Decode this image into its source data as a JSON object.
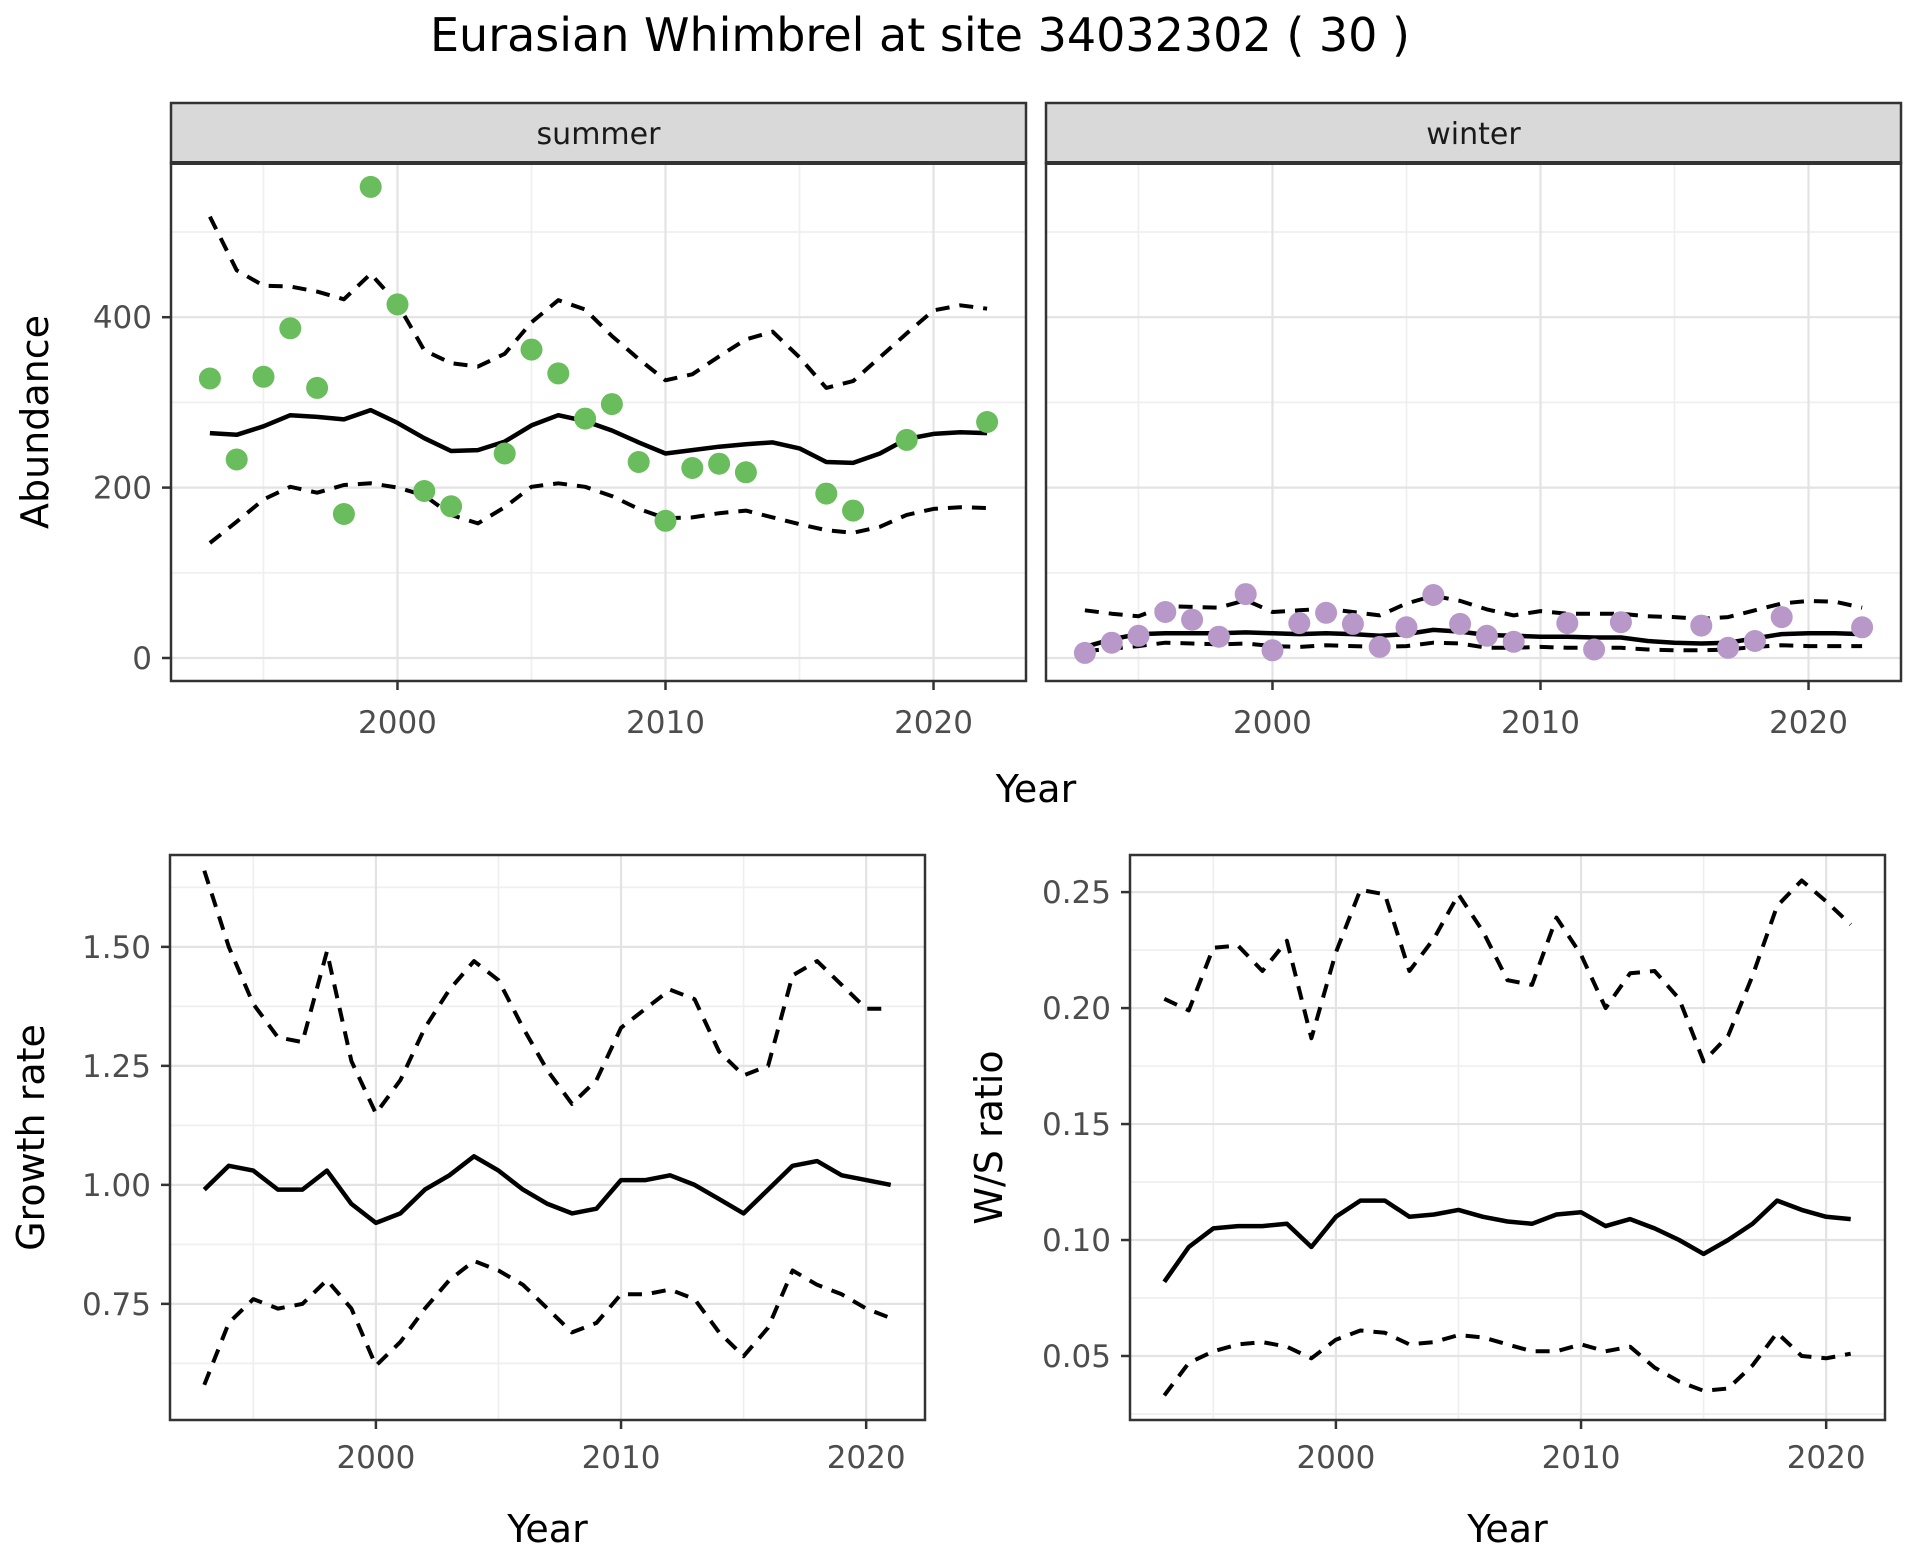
{
  "title": "Eurasian Whimbrel at site 34032302 ( 30 )",
  "top_xlabel": "Year",
  "colors": {
    "summer_point": "#6ABD5C",
    "winter_point": "#B897C9",
    "line": "#000000",
    "strip_fill": "#D9D9D9",
    "strip_text": "#1A1A1A",
    "panel_border": "#333333",
    "grid_major": "#E3E3E3",
    "grid_minor": "#EFEFEF",
    "tick_text": "#4D4D4D",
    "background": "#FFFFFF"
  },
  "chart_data": [
    {
      "id": "abundance-summer",
      "type": "scatter",
      "facet_label": "summer",
      "ylabel": "Abundance",
      "xlabel": "",
      "xlim": [
        1991.55,
        2023.45
      ],
      "ylim": [
        -27,
        581
      ],
      "xticks": [
        2000,
        2010,
        2020
      ],
      "xtick_labels": [
        "2000",
        "2010",
        "2020"
      ],
      "xminor": [
        1995,
        2005,
        2015
      ],
      "yticks": [
        0,
        200,
        400
      ],
      "ytick_labels": [
        "0",
        "200",
        "400"
      ],
      "yminor": [
        100,
        300,
        500
      ],
      "point_color": "#6ABD5C",
      "points": {
        "x": [
          1993,
          1994,
          1995,
          1996,
          1997,
          1998,
          1999,
          2000,
          2001,
          2002,
          2004,
          2005,
          2006,
          2007,
          2008,
          2009,
          2010,
          2011,
          2012,
          2013,
          2016,
          2017,
          2019,
          2022
        ],
        "y": [
          328,
          233,
          330,
          387,
          317,
          169,
          553,
          415,
          196,
          178,
          240,
          362,
          334,
          281,
          298,
          230,
          161,
          223,
          228,
          218,
          193,
          173,
          256,
          277
        ]
      },
      "series": [
        {
          "name": "fit",
          "style": "solid",
          "x": [
            1993,
            1994,
            1995,
            1996,
            1997,
            1998,
            1999,
            2000,
            2001,
            2002,
            2003,
            2004,
            2005,
            2006,
            2007,
            2008,
            2009,
            2010,
            2011,
            2012,
            2013,
            2014,
            2015,
            2016,
            2017,
            2018,
            2019,
            2020,
            2021,
            2022
          ],
          "y": [
            264,
            262,
            272,
            285,
            283,
            280,
            291,
            276,
            258,
            243,
            244,
            254,
            273,
            285,
            278,
            267,
            253,
            240,
            244,
            248,
            251,
            253,
            246,
            230,
            229,
            240,
            257,
            263,
            265,
            264
          ]
        },
        {
          "name": "upper_ci",
          "style": "dashed",
          "x": [
            1993,
            1994,
            1995,
            1996,
            1997,
            1998,
            1999,
            2000,
            2001,
            2002,
            2003,
            2004,
            2005,
            2006,
            2007,
            2008,
            2009,
            2010,
            2011,
            2012,
            2013,
            2014,
            2015,
            2016,
            2017,
            2018,
            2019,
            2020,
            2021,
            2022
          ],
          "y": [
            518,
            455,
            437,
            436,
            430,
            421,
            451,
            416,
            361,
            346,
            342,
            357,
            394,
            420,
            409,
            378,
            351,
            326,
            333,
            354,
            374,
            383,
            353,
            317,
            325,
            353,
            381,
            408,
            414,
            410
          ]
        },
        {
          "name": "lower_ci",
          "style": "dashed",
          "x": [
            1993,
            1994,
            1995,
            1996,
            1997,
            1998,
            1999,
            2000,
            2001,
            2002,
            2003,
            2004,
            2005,
            2006,
            2007,
            2008,
            2009,
            2010,
            2011,
            2012,
            2013,
            2014,
            2015,
            2016,
            2017,
            2018,
            2019,
            2020,
            2021,
            2022
          ],
          "y": [
            135,
            160,
            186,
            201,
            194,
            203,
            205,
            200,
            191,
            168,
            158,
            177,
            201,
            205,
            201,
            190,
            175,
            164,
            165,
            170,
            173,
            165,
            157,
            150,
            147,
            154,
            168,
            175,
            177,
            176
          ]
        }
      ]
    },
    {
      "id": "abundance-winter",
      "type": "scatter",
      "facet_label": "winter",
      "ylabel": "",
      "xlabel": "",
      "xlim": [
        1991.55,
        2023.45
      ],
      "ylim": [
        -27,
        581
      ],
      "xticks": [
        2000,
        2010,
        2020
      ],
      "xtick_labels": [
        "2000",
        "2010",
        "2020"
      ],
      "xminor": [
        1995,
        2005,
        2015
      ],
      "yticks": [
        0,
        200,
        400
      ],
      "ytick_labels": [
        "0",
        "200",
        "400"
      ],
      "yminor": [
        100,
        300,
        500
      ],
      "point_color": "#B897C9",
      "points": {
        "x": [
          1993,
          1994,
          1995,
          1996,
          1997,
          1998,
          1999,
          2000,
          2001,
          2002,
          2003,
          2004,
          2005,
          2006,
          2007,
          2008,
          2009,
          2011,
          2012,
          2013,
          2016,
          2017,
          2018,
          2019,
          2022
        ],
        "y": [
          6,
          18,
          26,
          54,
          45,
          25,
          75,
          9,
          41,
          53,
          40,
          13,
          36,
          74,
          40,
          26,
          19,
          41,
          10,
          42,
          38,
          12,
          20,
          48,
          36
        ]
      },
      "series": [
        {
          "name": "fit",
          "style": "solid",
          "x": [
            1993,
            1994,
            1995,
            1996,
            1997,
            1998,
            1999,
            2000,
            2001,
            2002,
            2003,
            2004,
            2005,
            2006,
            2007,
            2008,
            2009,
            2010,
            2011,
            2012,
            2013,
            2014,
            2015,
            2016,
            2017,
            2018,
            2019,
            2020,
            2021,
            2022
          ],
          "y": [
            13,
            22,
            28,
            29,
            29,
            29,
            30,
            29,
            28,
            29,
            28,
            26,
            28,
            33,
            31,
            27,
            26,
            25,
            25,
            24,
            24,
            20,
            18,
            17,
            18,
            23,
            28,
            29,
            29,
            28
          ]
        },
        {
          "name": "upper_ci",
          "style": "dashed",
          "x": [
            1993,
            1994,
            1995,
            1996,
            1997,
            1998,
            1999,
            2000,
            2001,
            2002,
            2003,
            2004,
            2005,
            2006,
            2007,
            2008,
            2009,
            2010,
            2011,
            2012,
            2013,
            2014,
            2015,
            2016,
            2017,
            2018,
            2019,
            2020,
            2021,
            2022
          ],
          "y": [
            56,
            52,
            49,
            61,
            60,
            59,
            68,
            54,
            56,
            58,
            54,
            50,
            64,
            73,
            67,
            57,
            50,
            55,
            52,
            52,
            52,
            49,
            48,
            46,
            48,
            56,
            64,
            67,
            66,
            59
          ]
        },
        {
          "name": "lower_ci",
          "style": "dashed",
          "x": [
            1993,
            1994,
            1995,
            1996,
            1997,
            1998,
            1999,
            2000,
            2001,
            2002,
            2003,
            2004,
            2005,
            2006,
            2007,
            2008,
            2009,
            2010,
            2011,
            2012,
            2013,
            2014,
            2015,
            2016,
            2017,
            2018,
            2019,
            2020,
            2021,
            2022
          ],
          "y": [
            8,
            11,
            14,
            18,
            17,
            16,
            17,
            14,
            13,
            15,
            14,
            13,
            14,
            18,
            17,
            12,
            12,
            13,
            12,
            12,
            12,
            10,
            9,
            9,
            10,
            13,
            15,
            14,
            14,
            14
          ]
        }
      ]
    },
    {
      "id": "growth-rate",
      "type": "line",
      "facet_label": "",
      "ylabel": "Growth rate",
      "xlabel": "Year",
      "xlim": [
        1991.6,
        2022.4
      ],
      "ylim": [
        0.506,
        1.693
      ],
      "xticks": [
        2000,
        2010,
        2020
      ],
      "xtick_labels": [
        "2000",
        "2010",
        "2020"
      ],
      "xminor": [
        1995,
        2005,
        2015
      ],
      "yticks": [
        0.75,
        1.0,
        1.25,
        1.5
      ],
      "ytick_labels": [
        "0.75",
        "1.00",
        "1.25",
        "1.50"
      ],
      "yminor": [
        0.625,
        0.875,
        1.125,
        1.375,
        1.625
      ],
      "point_color": "",
      "points": {
        "x": [],
        "y": []
      },
      "series": [
        {
          "name": "fit",
          "style": "solid",
          "x": [
            1993,
            1994,
            1995,
            1996,
            1997,
            1998,
            1999,
            2000,
            2001,
            2002,
            2003,
            2004,
            2005,
            2006,
            2007,
            2008,
            2009,
            2010,
            2011,
            2012,
            2013,
            2014,
            2015,
            2016,
            2017,
            2018,
            2019,
            2020,
            2021
          ],
          "y": [
            0.99,
            1.04,
            1.03,
            0.99,
            0.99,
            1.03,
            0.96,
            0.92,
            0.94,
            0.99,
            1.02,
            1.06,
            1.03,
            0.99,
            0.96,
            0.94,
            0.95,
            1.01,
            1.01,
            1.02,
            1.0,
            0.97,
            0.94,
            0.99,
            1.04,
            1.05,
            1.02,
            1.01,
            1.0
          ]
        },
        {
          "name": "upper_ci",
          "style": "dashed",
          "x": [
            1993,
            1994,
            1995,
            1996,
            1997,
            1998,
            1999,
            2000,
            2001,
            2002,
            2003,
            2004,
            2005,
            2006,
            2007,
            2008,
            2009,
            2010,
            2011,
            2012,
            2013,
            2014,
            2015,
            2016,
            2017,
            2018,
            2019,
            2020,
            2021
          ],
          "y": [
            1.66,
            1.5,
            1.38,
            1.31,
            1.3,
            1.49,
            1.26,
            1.15,
            1.22,
            1.33,
            1.41,
            1.47,
            1.43,
            1.33,
            1.24,
            1.17,
            1.22,
            1.33,
            1.37,
            1.41,
            1.39,
            1.28,
            1.23,
            1.25,
            1.44,
            1.47,
            1.42,
            1.37,
            1.37
          ]
        },
        {
          "name": "lower_ci",
          "style": "dashed",
          "x": [
            1993,
            1994,
            1995,
            1996,
            1997,
            1998,
            1999,
            2000,
            2001,
            2002,
            2003,
            2004,
            2005,
            2006,
            2007,
            2008,
            2009,
            2010,
            2011,
            2012,
            2013,
            2014,
            2015,
            2016,
            2017,
            2018,
            2019,
            2020,
            2021
          ],
          "y": [
            0.58,
            0.71,
            0.76,
            0.74,
            0.75,
            0.8,
            0.74,
            0.62,
            0.67,
            0.74,
            0.8,
            0.84,
            0.82,
            0.79,
            0.74,
            0.69,
            0.71,
            0.77,
            0.77,
            0.78,
            0.76,
            0.69,
            0.64,
            0.7,
            0.82,
            0.79,
            0.77,
            0.74,
            0.72
          ]
        }
      ]
    },
    {
      "id": "ws-ratio",
      "type": "line",
      "facet_label": "",
      "ylabel": "W/S ratio",
      "xlabel": "Year",
      "xlim": [
        1991.6,
        2022.4
      ],
      "ylim": [
        0.0224,
        0.266
      ],
      "xticks": [
        2000,
        2010,
        2020
      ],
      "xtick_labels": [
        "2000",
        "2010",
        "2020"
      ],
      "xminor": [
        1995,
        2005,
        2015
      ],
      "yticks": [
        0.05,
        0.1,
        0.15,
        0.2,
        0.25
      ],
      "ytick_labels": [
        "0.05",
        "0.10",
        "0.15",
        "0.20",
        "0.25"
      ],
      "yminor": [
        0.025,
        0.075,
        0.125,
        0.175,
        0.225
      ],
      "point_color": "",
      "points": {
        "x": [],
        "y": []
      },
      "series": [
        {
          "name": "fit",
          "style": "solid",
          "x": [
            1993,
            1994,
            1995,
            1996,
            1997,
            1998,
            1999,
            2000,
            2001,
            2002,
            2003,
            2004,
            2005,
            2006,
            2007,
            2008,
            2009,
            2010,
            2011,
            2012,
            2013,
            2014,
            2015,
            2016,
            2017,
            2018,
            2019,
            2020,
            2021
          ],
          "y": [
            0.082,
            0.097,
            0.105,
            0.106,
            0.106,
            0.107,
            0.097,
            0.11,
            0.117,
            0.117,
            0.11,
            0.111,
            0.113,
            0.11,
            0.108,
            0.107,
            0.111,
            0.112,
            0.106,
            0.109,
            0.105,
            0.1,
            0.094,
            0.1,
            0.107,
            0.117,
            0.113,
            0.11,
            0.109
          ]
        },
        {
          "name": "upper_ci",
          "style": "dashed",
          "x": [
            1993,
            1994,
            1995,
            1996,
            1997,
            1998,
            1999,
            2000,
            2001,
            2002,
            2003,
            2004,
            2005,
            2006,
            2007,
            2008,
            2009,
            2010,
            2011,
            2012,
            2013,
            2014,
            2015,
            2016,
            2017,
            2018,
            2019,
            2020,
            2021
          ],
          "y": [
            0.204,
            0.199,
            0.226,
            0.227,
            0.216,
            0.229,
            0.187,
            0.224,
            0.251,
            0.249,
            0.216,
            0.23,
            0.249,
            0.233,
            0.212,
            0.21,
            0.239,
            0.223,
            0.2,
            0.215,
            0.216,
            0.204,
            0.177,
            0.188,
            0.214,
            0.244,
            0.255,
            0.246,
            0.236
          ]
        },
        {
          "name": "lower_ci",
          "style": "dashed",
          "x": [
            1993,
            1994,
            1995,
            1996,
            1997,
            1998,
            1999,
            2000,
            2001,
            2002,
            2003,
            2004,
            2005,
            2006,
            2007,
            2008,
            2009,
            2010,
            2011,
            2012,
            2013,
            2014,
            2015,
            2016,
            2017,
            2018,
            2019,
            2020,
            2021
          ],
          "y": [
            0.033,
            0.047,
            0.052,
            0.055,
            0.056,
            0.054,
            0.049,
            0.057,
            0.061,
            0.06,
            0.055,
            0.056,
            0.059,
            0.058,
            0.055,
            0.052,
            0.052,
            0.055,
            0.052,
            0.054,
            0.045,
            0.039,
            0.035,
            0.036,
            0.046,
            0.06,
            0.05,
            0.049,
            0.051
          ]
        }
      ]
    }
  ]
}
